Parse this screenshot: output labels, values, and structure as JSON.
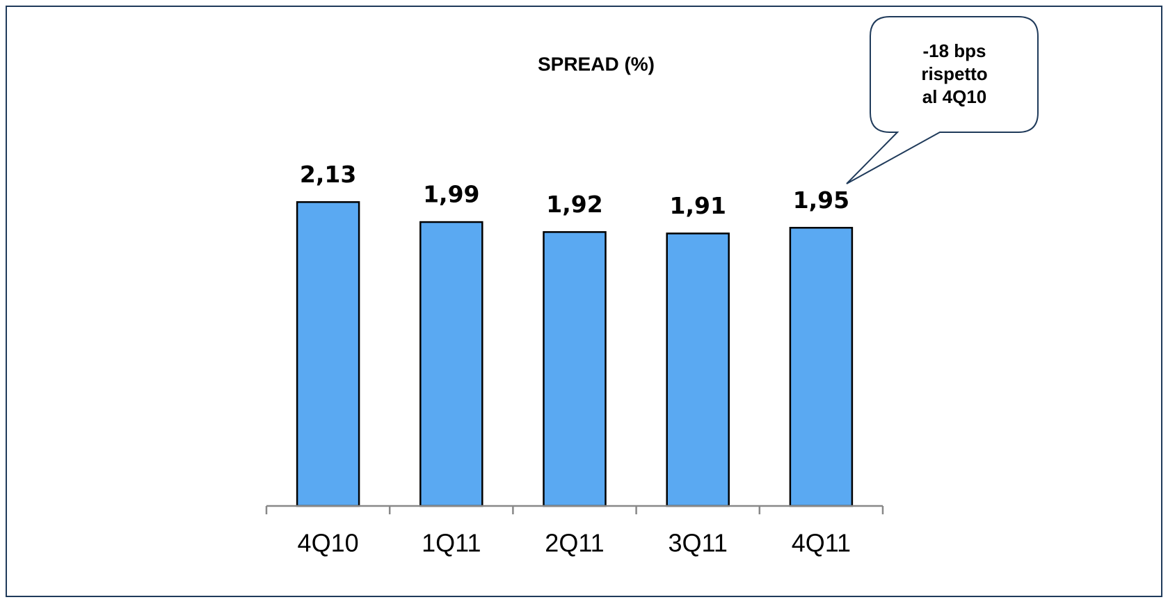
{
  "chart_data": {
    "type": "bar",
    "title": "SPREAD (%)",
    "categories": [
      "4Q10",
      "1Q11",
      "2Q11",
      "3Q11",
      "4Q11"
    ],
    "values": [
      2.13,
      1.99,
      1.92,
      1.91,
      1.95
    ],
    "value_labels": [
      "2,13",
      "1,99",
      "1,92",
      "1,91",
      "1,95"
    ],
    "color": "#5aa9f2",
    "annotation": [
      "-18 bps",
      "rispetto",
      "al 4Q10"
    ]
  }
}
